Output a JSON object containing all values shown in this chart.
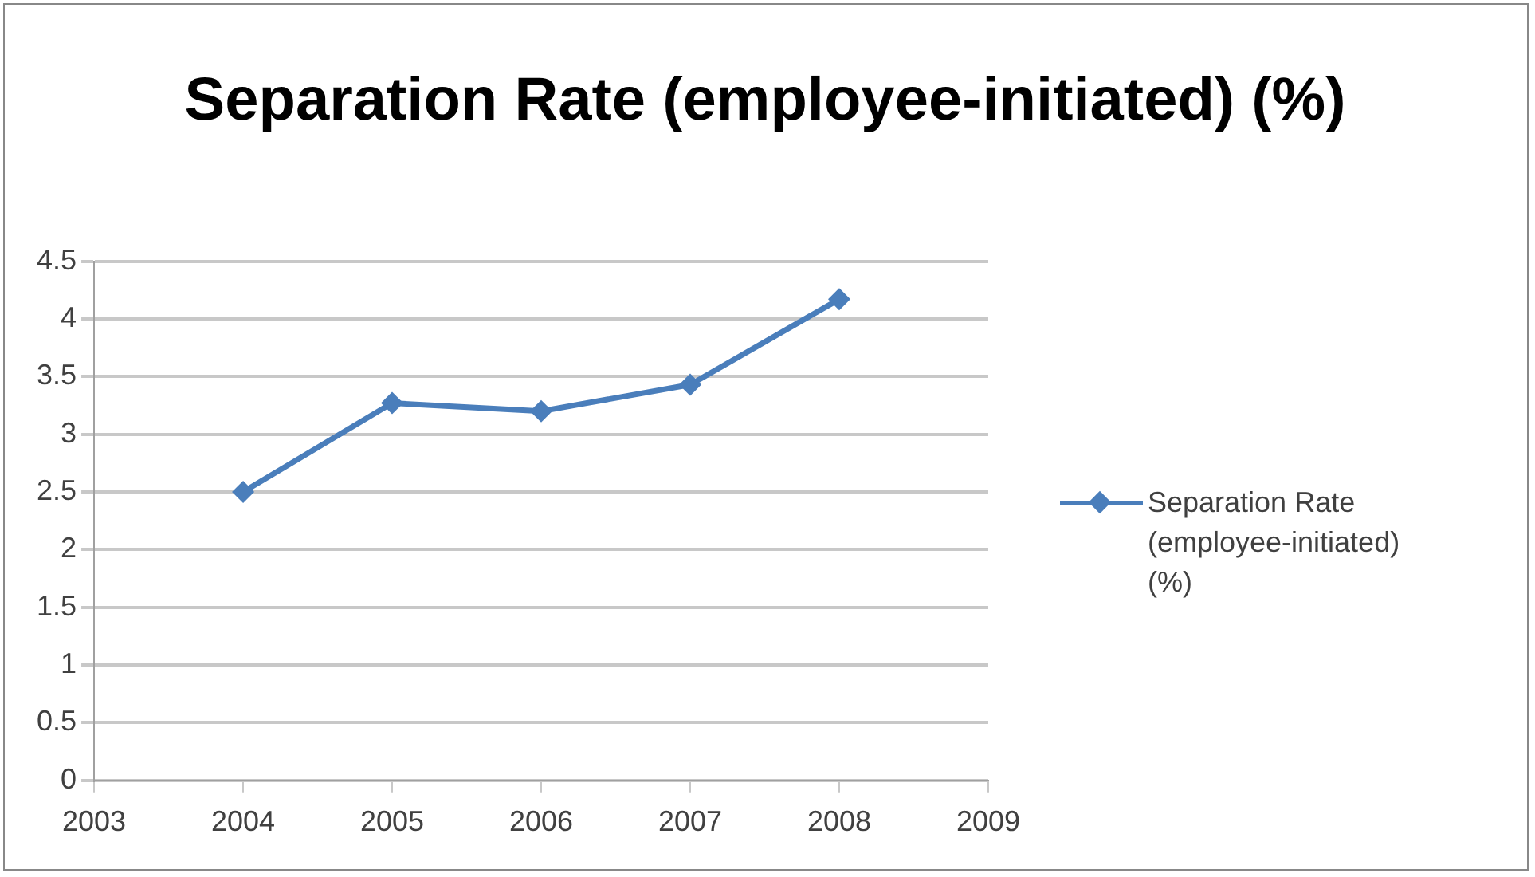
{
  "chart_data": {
    "type": "line",
    "title": "Separation Rate (employee-initiated) (%)",
    "x": [
      2004,
      2005,
      2006,
      2007,
      2008
    ],
    "series": [
      {
        "name": "Separation Rate (employee-initiated) (%)",
        "color": "#4a7ebb",
        "values": [
          2.5,
          3.27,
          3.2,
          3.43,
          4.17
        ]
      }
    ],
    "xlim": [
      2003,
      2009
    ],
    "xticks": [
      2003,
      2004,
      2005,
      2006,
      2007,
      2008,
      2009
    ],
    "ylim": [
      0,
      4.5
    ],
    "yticks": [
      0,
      0.5,
      1,
      1.5,
      2,
      2.5,
      3,
      3.5,
      4,
      4.5
    ],
    "grid": "y",
    "legend": "right",
    "marker": "diamond",
    "line_style": "solid"
  }
}
